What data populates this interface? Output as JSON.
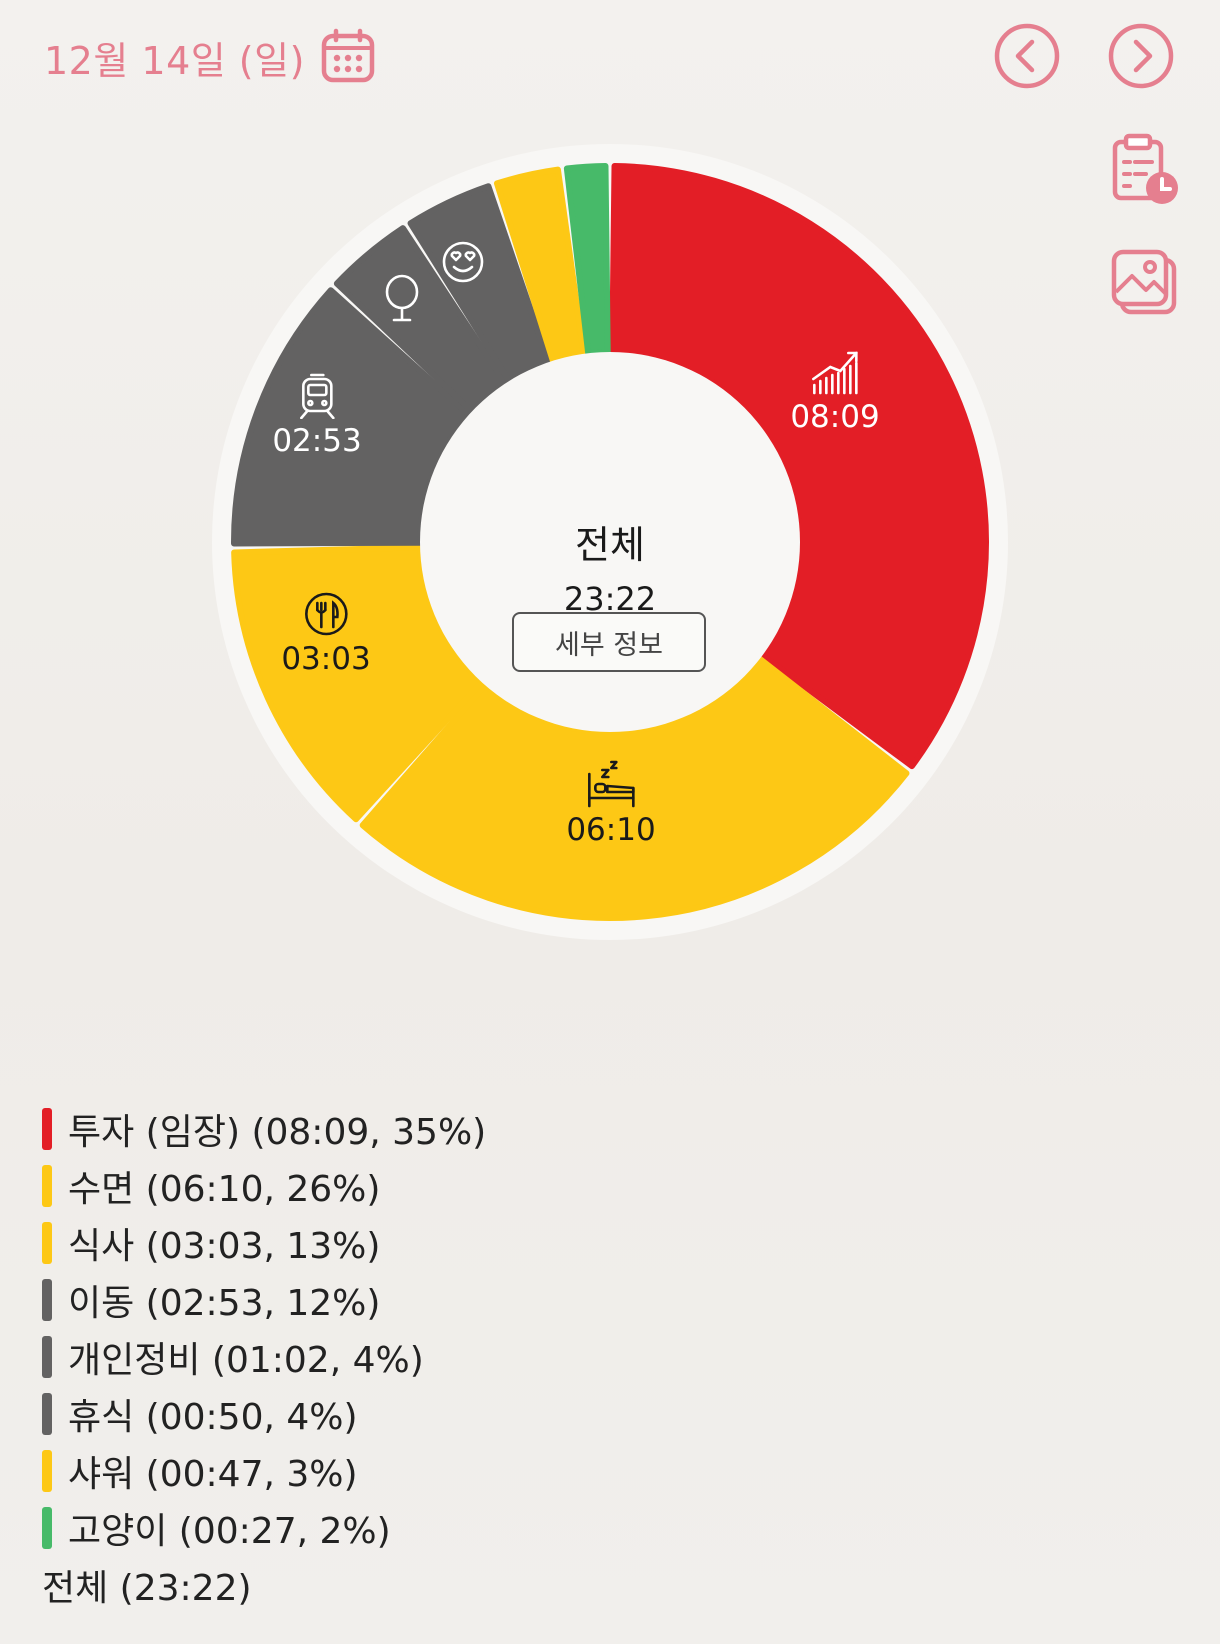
{
  "header": {
    "date": "12월 14일 (일)",
    "icons": [
      "calendar-icon",
      "chevron-left-icon",
      "chevron-right-icon",
      "clipboard-clock-icon",
      "gallery-icon"
    ]
  },
  "colors": {
    "accent": "#e57f8f",
    "red": "#e31e26",
    "yellow": "#fdc815",
    "gray": "#636262",
    "green": "#47ba69"
  },
  "center": {
    "title": "전체",
    "total": "23:22",
    "detail_button": "세부 정보"
  },
  "chart_data": {
    "type": "pie",
    "total": "23:22",
    "segments": [
      {
        "name": "투자 (임장)",
        "time": "08:09",
        "percent": 35,
        "color": "#e31e26",
        "icon": "chart-growth-icon",
        "show_time": true
      },
      {
        "name": "수면",
        "time": "06:10",
        "percent": 26,
        "color": "#fdc815",
        "icon": "bed-icon",
        "show_time": true
      },
      {
        "name": "식사",
        "time": "03:03",
        "percent": 13,
        "color": "#fdc815",
        "icon": "fork-knife-icon",
        "show_time": true
      },
      {
        "name": "이동",
        "time": "02:53",
        "percent": 12,
        "color": "#636262",
        "icon": "train-icon",
        "show_time": true
      },
      {
        "name": "개인정비",
        "time": "01:02",
        "percent": 4,
        "color": "#636262",
        "icon": "mirror-icon",
        "show_time": false
      },
      {
        "name": "휴식",
        "time": "00:50",
        "percent": 4,
        "color": "#636262",
        "icon": "smile-heart-eyes-icon",
        "show_time": false
      },
      {
        "name": "샤워",
        "time": "00:47",
        "percent": 3,
        "color": "#fdc815",
        "icon": "",
        "show_time": false
      },
      {
        "name": "고양이",
        "time": "00:27",
        "percent": 2,
        "color": "#47ba69",
        "icon": "",
        "show_time": false
      }
    ]
  },
  "legend": {
    "items": [
      {
        "text": "투자 (임장) (08:09, 35%)",
        "color": "#e31e26"
      },
      {
        "text": "수면 (06:10, 26%)",
        "color": "#fdc815"
      },
      {
        "text": "식사 (03:03, 13%)",
        "color": "#fdc815"
      },
      {
        "text": "이동 (02:53, 12%)",
        "color": "#636262"
      },
      {
        "text": "개인정비 (01:02, 4%)",
        "color": "#636262"
      },
      {
        "text": "휴식 (00:50, 4%)",
        "color": "#636262"
      },
      {
        "text": "샤워 (00:47, 3%)",
        "color": "#fdc815"
      },
      {
        "text": "고양이 (00:27, 2%)",
        "color": "#47ba69"
      }
    ],
    "total": "전체 (23:22)"
  }
}
